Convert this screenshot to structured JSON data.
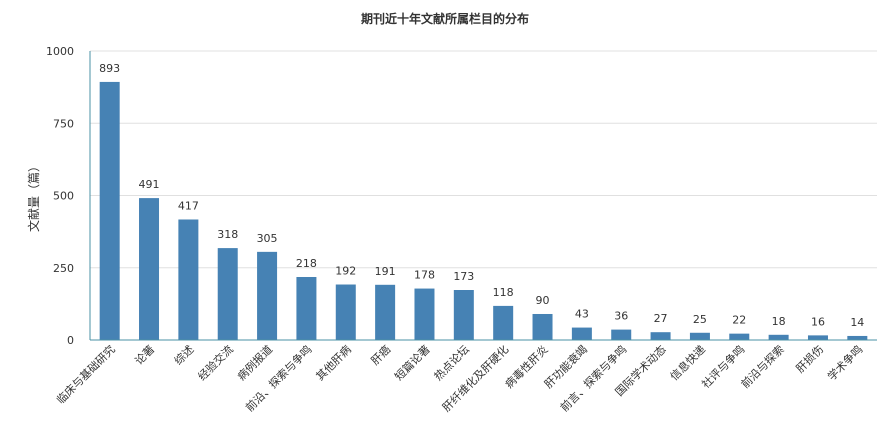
{
  "chart_data": {
    "type": "bar",
    "title": "期刊近十年文献所属栏目的分布",
    "xlabel": "",
    "ylabel": "文献量（篇）",
    "ylim": [
      0,
      1000
    ],
    "yticks": [
      0,
      250,
      500,
      750,
      1000
    ],
    "grid": true,
    "bar_color": "#4682b4",
    "categories": [
      "临床与基础研究",
      "论著",
      "综述",
      "经验交流",
      "病例报道",
      "前沿、探索与争鸣",
      "其他肝病",
      "肝癌",
      "短篇论著",
      "热点论坛",
      "肝纤维化及肝硬化",
      "病毒性肝炎",
      "肝功能衰竭",
      "前言、探索与争鸣",
      "国际学术动态",
      "信息快递",
      "社评与争鸣",
      "前沿与探索",
      "肝损伤",
      "学术争鸣"
    ],
    "values": [
      893,
      491,
      417,
      318,
      305,
      218,
      192,
      191,
      178,
      173,
      118,
      90,
      43,
      36,
      27,
      25,
      22,
      18,
      16,
      14
    ]
  }
}
